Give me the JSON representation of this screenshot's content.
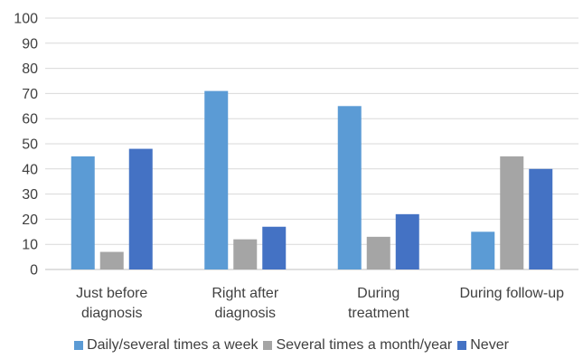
{
  "chart_data": {
    "type": "bar",
    "title": "",
    "xlabel": "",
    "ylabel": "",
    "ylim": [
      0,
      100
    ],
    "yticks": [
      0,
      10,
      20,
      30,
      40,
      50,
      60,
      70,
      80,
      90,
      100
    ],
    "grid": true,
    "legend_position": "bottom",
    "categories": [
      [
        "Just before",
        "diagnosis"
      ],
      [
        "Right after",
        "diagnosis"
      ],
      [
        "During",
        "treatment"
      ],
      [
        "During follow-up"
      ]
    ],
    "series": [
      {
        "name": "Daily/several times a week",
        "color": "#5b9bd5",
        "values": [
          45,
          71,
          65,
          15
        ]
      },
      {
        "name": "Several times a month/year",
        "color": "#a5a5a5",
        "values": [
          7,
          12,
          13,
          45
        ]
      },
      {
        "name": "Never",
        "color": "#4472c4",
        "values": [
          48,
          17,
          22,
          40
        ]
      }
    ]
  }
}
